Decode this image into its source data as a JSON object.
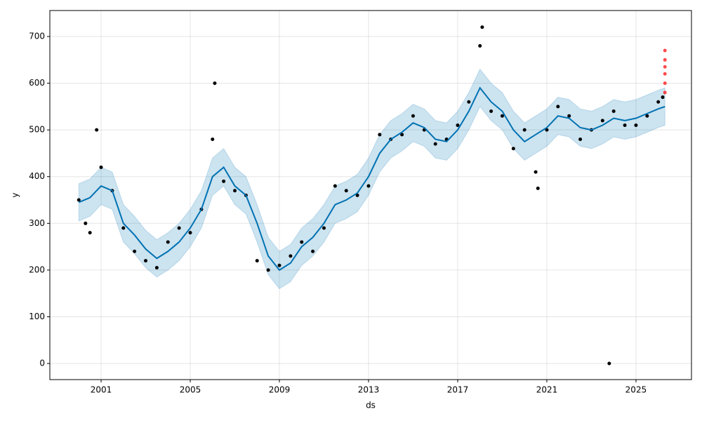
{
  "chart_data": {
    "type": "forecast",
    "x_label": "ds",
    "y_label": "y",
    "xlim": [
      1998.7,
      2027.49
    ],
    "xticks": [
      2001,
      2005,
      2009,
      2013,
      2017,
      2021,
      2025
    ],
    "ylim": [
      -34.5,
      755.6
    ],
    "yticks": [
      0,
      100,
      200,
      300,
      400,
      500,
      600,
      700
    ],
    "grid": true,
    "forecast": {
      "color": "#0072B2",
      "band_color": "#0072B2",
      "x": [
        2000,
        2000.5,
        2001,
        2001.5,
        2002,
        2002.5,
        2003,
        2003.5,
        2004,
        2004.5,
        2005,
        2005.5,
        2006,
        2006.5,
        2007,
        2007.5,
        2008,
        2008.5,
        2009,
        2009.5,
        2010,
        2010.5,
        2011,
        2011.5,
        2012,
        2012.5,
        2013,
        2013.5,
        2014,
        2014.5,
        2015,
        2015.5,
        2016,
        2016.5,
        2017,
        2017.5,
        2018,
        2018.5,
        2019,
        2019.5,
        2020,
        2020.5,
        2021,
        2021.5,
        2022,
        2022.5,
        2023,
        2023.5,
        2024,
        2024.5,
        2025,
        2025.5,
        2026,
        2026.3
      ],
      "values": [
        345,
        355,
        380,
        370,
        300,
        275,
        245,
        225,
        240,
        260,
        290,
        330,
        400,
        420,
        380,
        360,
        300,
        230,
        200,
        215,
        250,
        270,
        300,
        340,
        350,
        365,
        400,
        450,
        480,
        495,
        515,
        505,
        480,
        475,
        500,
        540,
        590,
        560,
        540,
        500,
        475,
        490,
        505,
        530,
        525,
        505,
        500,
        510,
        525,
        520,
        525,
        535,
        545,
        550
      ],
      "lower": [
        305,
        315,
        340,
        330,
        260,
        235,
        205,
        185,
        200,
        220,
        250,
        290,
        360,
        380,
        340,
        320,
        260,
        190,
        160,
        175,
        210,
        230,
        260,
        300,
        310,
        325,
        360,
        410,
        440,
        455,
        475,
        465,
        440,
        435,
        460,
        500,
        550,
        520,
        500,
        460,
        435,
        450,
        465,
        490,
        485,
        465,
        460,
        470,
        485,
        480,
        485,
        495,
        505,
        510
      ],
      "upper": [
        385,
        395,
        420,
        410,
        340,
        315,
        285,
        265,
        280,
        300,
        330,
        370,
        440,
        460,
        420,
        400,
        340,
        270,
        240,
        255,
        290,
        310,
        340,
        380,
        390,
        405,
        440,
        490,
        520,
        535,
        555,
        545,
        520,
        515,
        540,
        580,
        630,
        600,
        580,
        540,
        515,
        530,
        545,
        570,
        565,
        545,
        540,
        550,
        565,
        560,
        565,
        575,
        585,
        590
      ]
    },
    "observed": {
      "color": "#000000",
      "x": [
        2000,
        2000.3,
        2000.5,
        2000.8,
        2001,
        2001.5,
        2002,
        2002.5,
        2003,
        2003.5,
        2004,
        2004.5,
        2005,
        2005.5,
        2006,
        2006.1,
        2006.5,
        2007,
        2007.5,
        2008,
        2008.5,
        2009,
        2009.5,
        2010,
        2010.5,
        2011,
        2011.5,
        2012,
        2012.5,
        2013,
        2013.5,
        2014,
        2014.5,
        2015,
        2015.5,
        2016,
        2016.5,
        2017,
        2017.5,
        2018,
        2018.1,
        2018.5,
        2019,
        2019.5,
        2020,
        2020.5,
        2020.6,
        2021,
        2021.5,
        2022,
        2022.5,
        2023,
        2023.5,
        2024,
        2023.8,
        2024.5,
        2025,
        2025.5,
        2026,
        2026.2
      ],
      "values": [
        350,
        300,
        280,
        500,
        420,
        370,
        290,
        240,
        220,
        205,
        260,
        290,
        280,
        330,
        480,
        600,
        390,
        370,
        360,
        220,
        200,
        210,
        230,
        260,
        240,
        290,
        380,
        370,
        360,
        380,
        490,
        480,
        490,
        530,
        500,
        470,
        480,
        510,
        560,
        680,
        720,
        540,
        530,
        460,
        500,
        410,
        375,
        500,
        550,
        530,
        480,
        500,
        520,
        540,
        0,
        510,
        510,
        530,
        560,
        570
      ]
    },
    "anomalies": {
      "color": "#ff0000",
      "x": [
        2026.3,
        2026.3,
        2026.3,
        2026.3,
        2026.3,
        2026.3
      ],
      "values": [
        580,
        600,
        620,
        635,
        650,
        670
      ]
    }
  }
}
